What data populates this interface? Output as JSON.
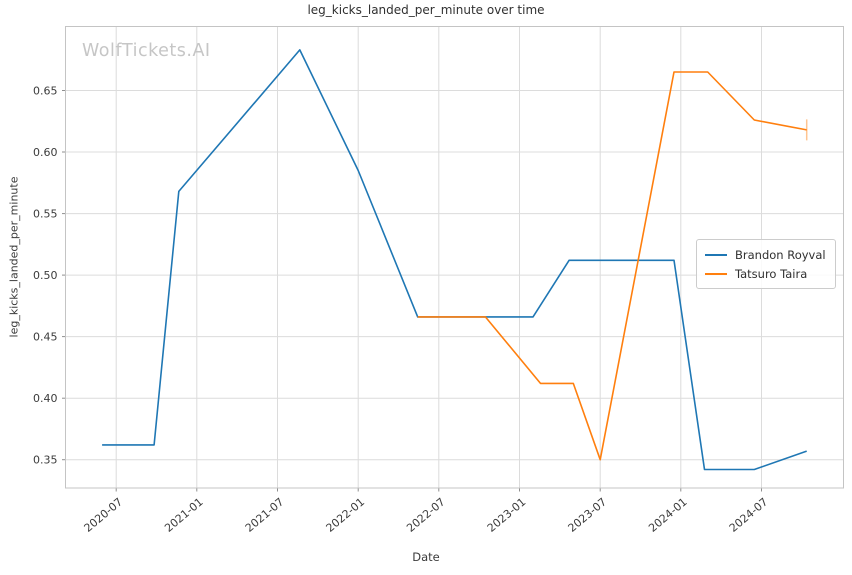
{
  "watermark": "WolfTickets.AI",
  "chart_data": {
    "type": "line",
    "title": "leg_kicks_landed_per_minute over time",
    "xlabel": "Date",
    "ylabel": "leg_kicks_landed_per_minute",
    "grid": true,
    "background": "#ffffff",
    "grid_color": "#dcdcdc",
    "spine_color": "#c4c4c4",
    "tick_color": "#8f8f8f",
    "x_tick_labels": [
      "2020-07",
      "2021-01",
      "2021-07",
      "2022-01",
      "2022-07",
      "2023-01",
      "2023-07",
      "2024-01",
      "2024-07"
    ],
    "y_tick_values": [
      0.35,
      0.4,
      0.45,
      0.5,
      0.55,
      0.6,
      0.65
    ],
    "y_tick_labels": [
      "0.35",
      "0.40",
      "0.45",
      "0.50",
      "0.55",
      "0.60",
      "0.65"
    ],
    "xlim": [
      "2020-03-08",
      "2025-01-04"
    ],
    "ylim": [
      0.327,
      0.702
    ],
    "legend": {
      "position": "center right",
      "entries": [
        "Brandon Royval",
        "Tatsuro Taira"
      ]
    },
    "series": [
      {
        "name": "Brandon Royval",
        "color": "#1f77b4",
        "end_cap": false,
        "points": [
          [
            "2020-05-30",
            0.362
          ],
          [
            "2020-09-26",
            0.362
          ],
          [
            "2020-11-21",
            0.568
          ],
          [
            "2021-08-21",
            0.683
          ],
          [
            "2022-01",
            0.585
          ],
          [
            "2022-05-14",
            0.466
          ],
          [
            "2023-02",
            0.466
          ],
          [
            "2023-04-22",
            0.512
          ],
          [
            "2023-12-16",
            0.512
          ],
          [
            "2024-02-24",
            0.342
          ],
          [
            "2024-06-15",
            0.342
          ],
          [
            "2024-10-12",
            0.357
          ]
        ]
      },
      {
        "name": "Tatsuro Taira",
        "color": "#ff7f0e",
        "end_cap": true,
        "points": [
          [
            "2022-05-14",
            0.466
          ],
          [
            "2022-10-15",
            0.466
          ],
          [
            "2023-02-18",
            0.412
          ],
          [
            "2023-05",
            0.412
          ],
          [
            "2023-07",
            0.35
          ],
          [
            "2023-12-16",
            0.665
          ],
          [
            "2024-03",
            0.665
          ],
          [
            "2024-06-15",
            0.626
          ],
          [
            "2024-10-12",
            0.618
          ]
        ]
      }
    ]
  }
}
